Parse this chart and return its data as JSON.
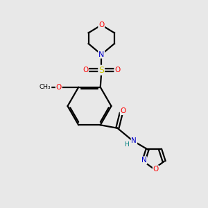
{
  "bg_color": "#e8e8e8",
  "bond_color": "#000000",
  "atom_colors": {
    "O": "#ff0000",
    "N": "#0000cd",
    "S": "#cccc00",
    "H": "#008080",
    "C": "#000000"
  },
  "figsize": [
    3.0,
    3.0
  ],
  "dpi": 100
}
